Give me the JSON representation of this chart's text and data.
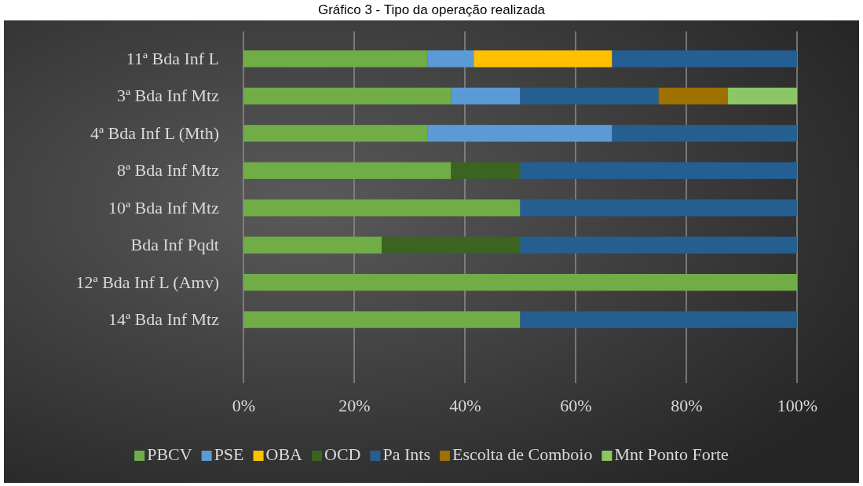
{
  "chart_data": {
    "type": "bar",
    "orientation": "horizontal",
    "stacked": true,
    "title": "Gráfico 3 - Tipo da operação realizada",
    "categories": [
      "11ª Bda Inf L",
      "3ª Bda Inf Mtz",
      "4ª Bda Inf L (Mth)",
      "8ª Bda Inf Mtz",
      "10ª Bda Inf Mtz",
      "Bda Inf Pqdt",
      "12ª Bda Inf L (Amv)",
      "14ª Bda Inf Mtz"
    ],
    "series": [
      {
        "name": "PBCV",
        "color": "#70ad47",
        "values": [
          33.3,
          37.5,
          33.3,
          37.5,
          50,
          25,
          100,
          50
        ]
      },
      {
        "name": "PSE",
        "color": "#5b9bd5",
        "values": [
          8.3,
          12.5,
          33.3,
          0,
          0,
          0,
          0,
          0
        ]
      },
      {
        "name": "OBA",
        "color": "#ffc000",
        "values": [
          25,
          0,
          0,
          0,
          0,
          0,
          0,
          0
        ]
      },
      {
        "name": "OCD",
        "color": "#3b6422",
        "values": [
          0,
          0,
          0,
          12.5,
          0,
          25,
          0,
          0
        ]
      },
      {
        "name": "Pa Ints",
        "color": "#255e91",
        "values": [
          33.4,
          25,
          33.4,
          50,
          50,
          50,
          0,
          50
        ]
      },
      {
        "name": "Escolta de Comboio",
        "color": "#9e7000",
        "values": [
          0,
          12.5,
          0,
          0,
          0,
          0,
          0,
          0
        ]
      },
      {
        "name": "Mnt Ponto Forte",
        "color": "#8cc665",
        "values": [
          0,
          12.5,
          0,
          0,
          0,
          0,
          0,
          0
        ]
      }
    ],
    "xlim": [
      0,
      100
    ],
    "xticks": [
      {
        "value": 0,
        "label": "0%"
      },
      {
        "value": 20,
        "label": "20%"
      },
      {
        "value": 40,
        "label": "40%"
      },
      {
        "value": 60,
        "label": "60%"
      },
      {
        "value": 80,
        "label": "80%"
      },
      {
        "value": 100,
        "label": "100%"
      }
    ],
    "grid": "x",
    "legend": "bottom"
  }
}
